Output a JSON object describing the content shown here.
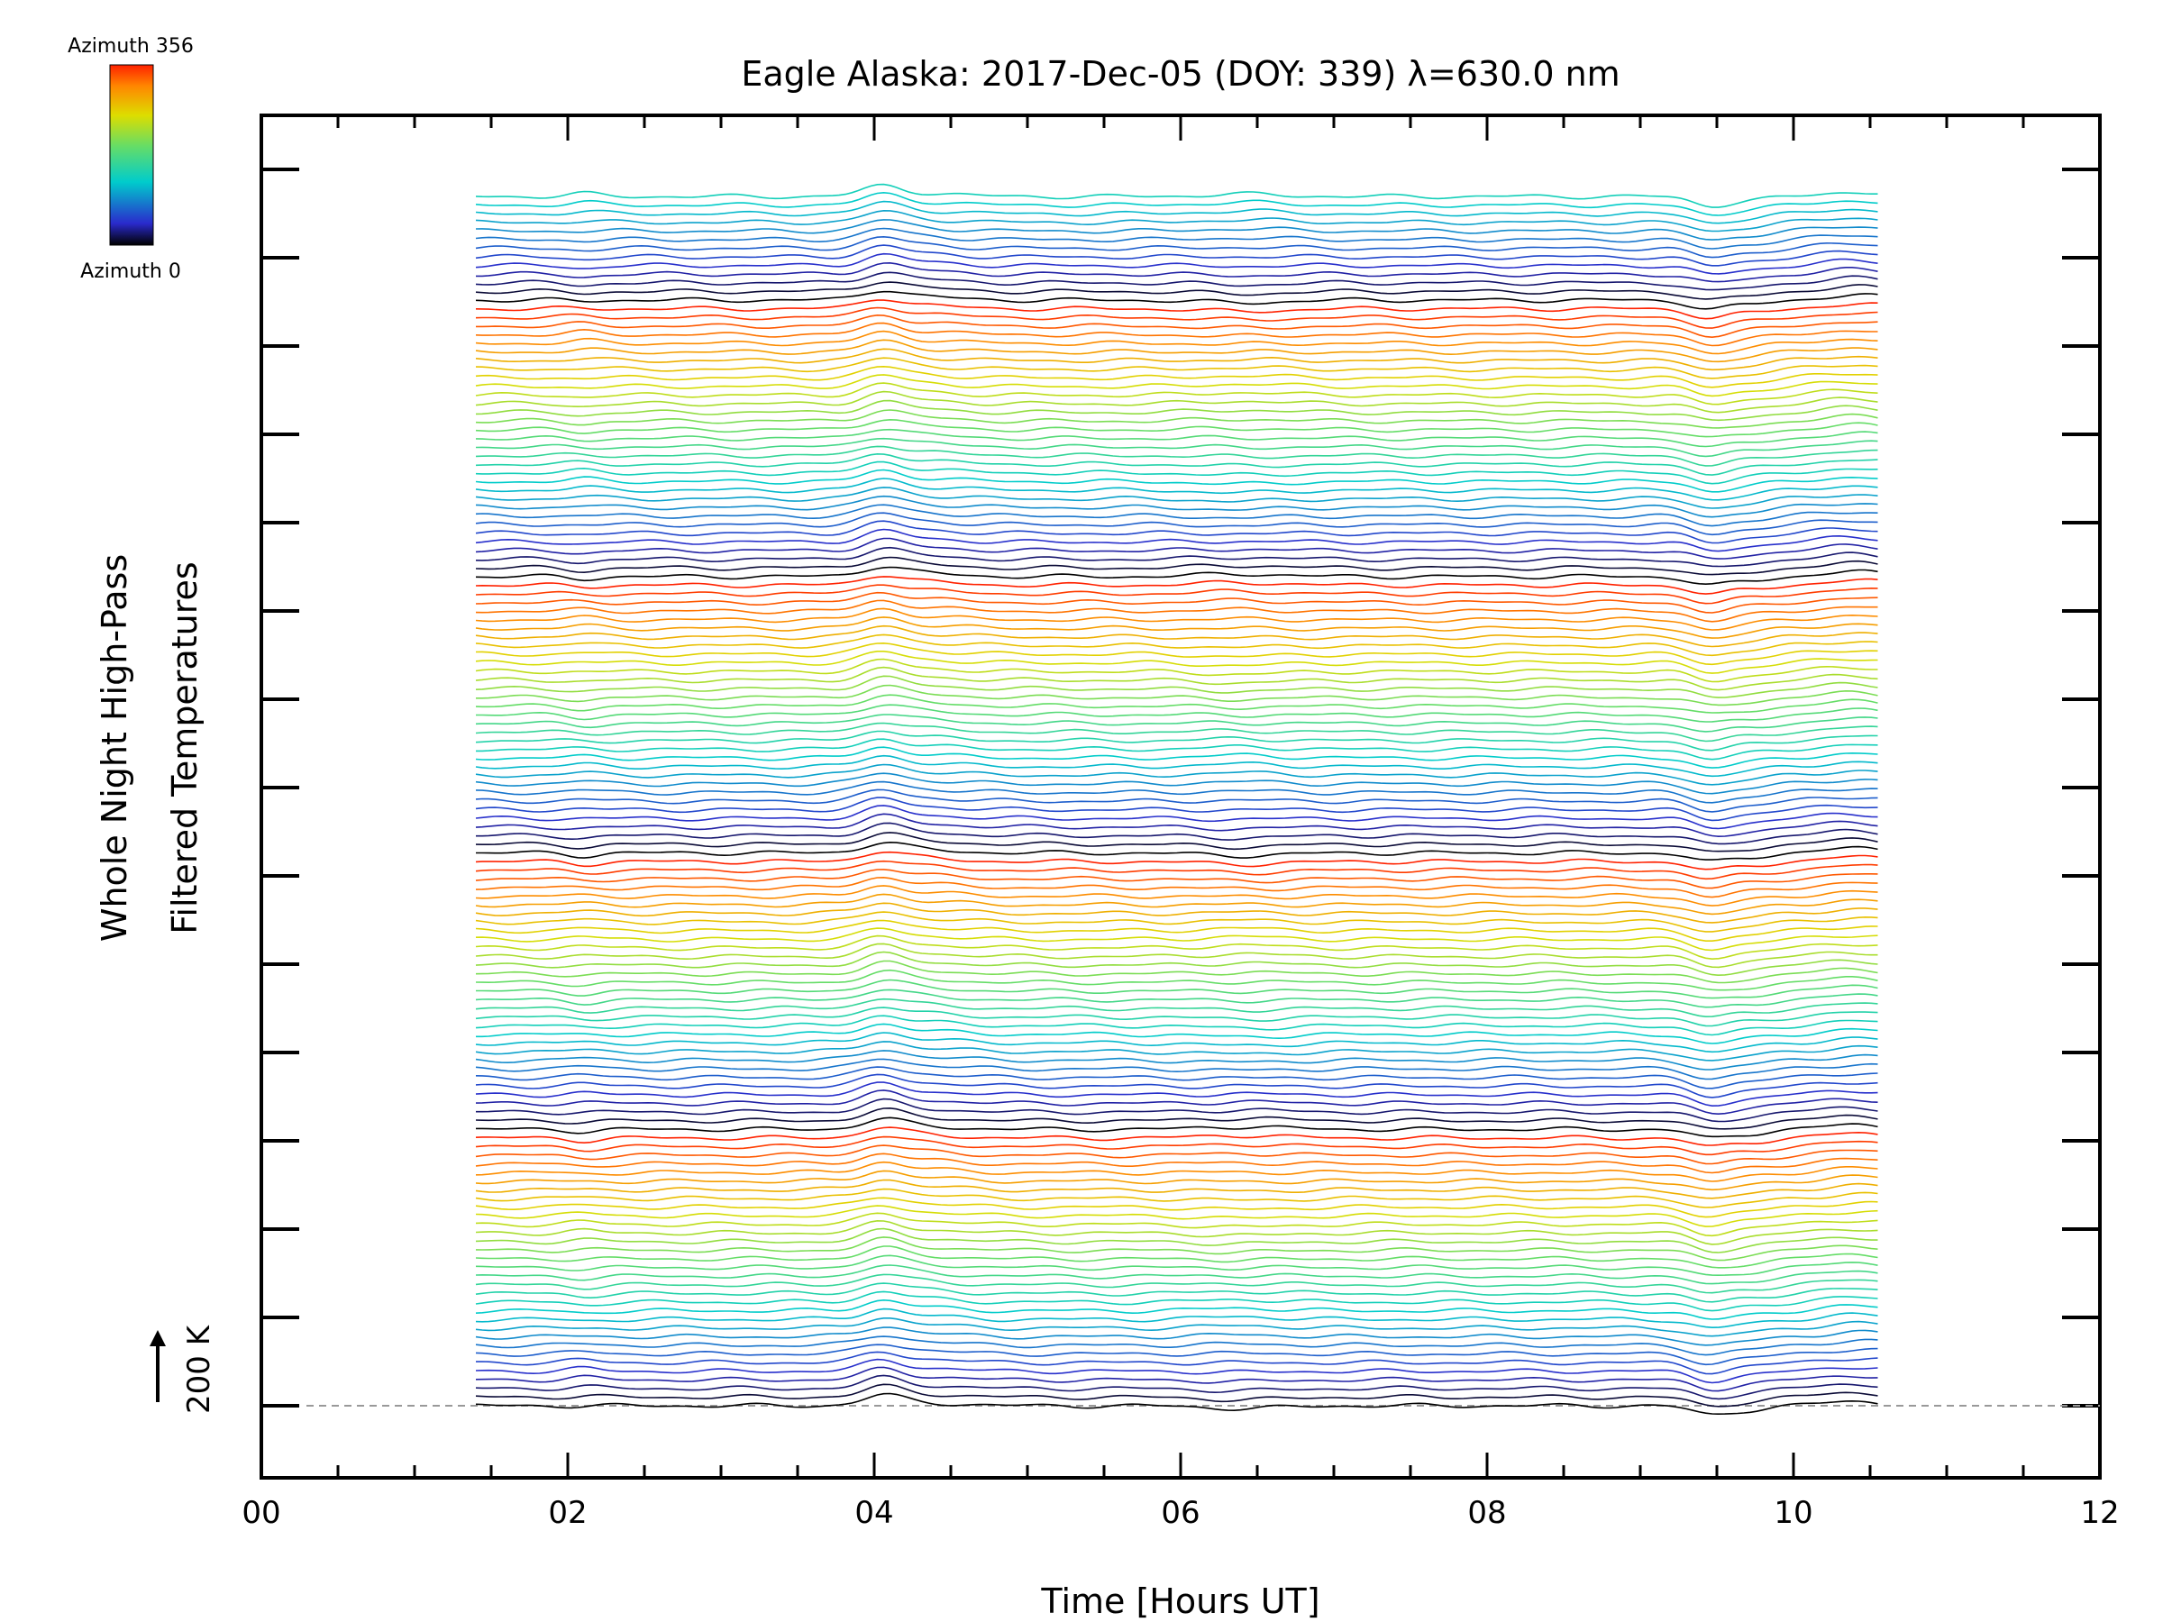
{
  "chart_data": {
    "type": "line",
    "title": "Eagle Alaska: 2017-Dec-05 (DOY: 339) λ=630.0 nm",
    "xlabel": "Time [Hours UT]",
    "ylabel_line1": "Whole Night High-Pass",
    "ylabel_line2": "Filtered Temperatures",
    "xlim": [
      0,
      12
    ],
    "x_ticks": [
      "00",
      "02",
      "04",
      "06",
      "08",
      "10",
      "12"
    ],
    "x_start_hours": 1.4,
    "x_end_hours": 10.55,
    "n_traces": 141,
    "traces_per_azimuth_cycle": 32,
    "scale_label": "200 K",
    "colorbar": {
      "top_label": "Azimuth 356",
      "bottom_label": "Azimuth 0",
      "colormap": "rainbow",
      "colors": [
        "#000000",
        "#2a2acc",
        "#00cccc",
        "#66dd66",
        "#dddd00",
        "#ff8800",
        "#ff2200"
      ]
    },
    "baseline_style": "dashed",
    "baseline_color": "#999999",
    "axis_color": "#000000"
  }
}
